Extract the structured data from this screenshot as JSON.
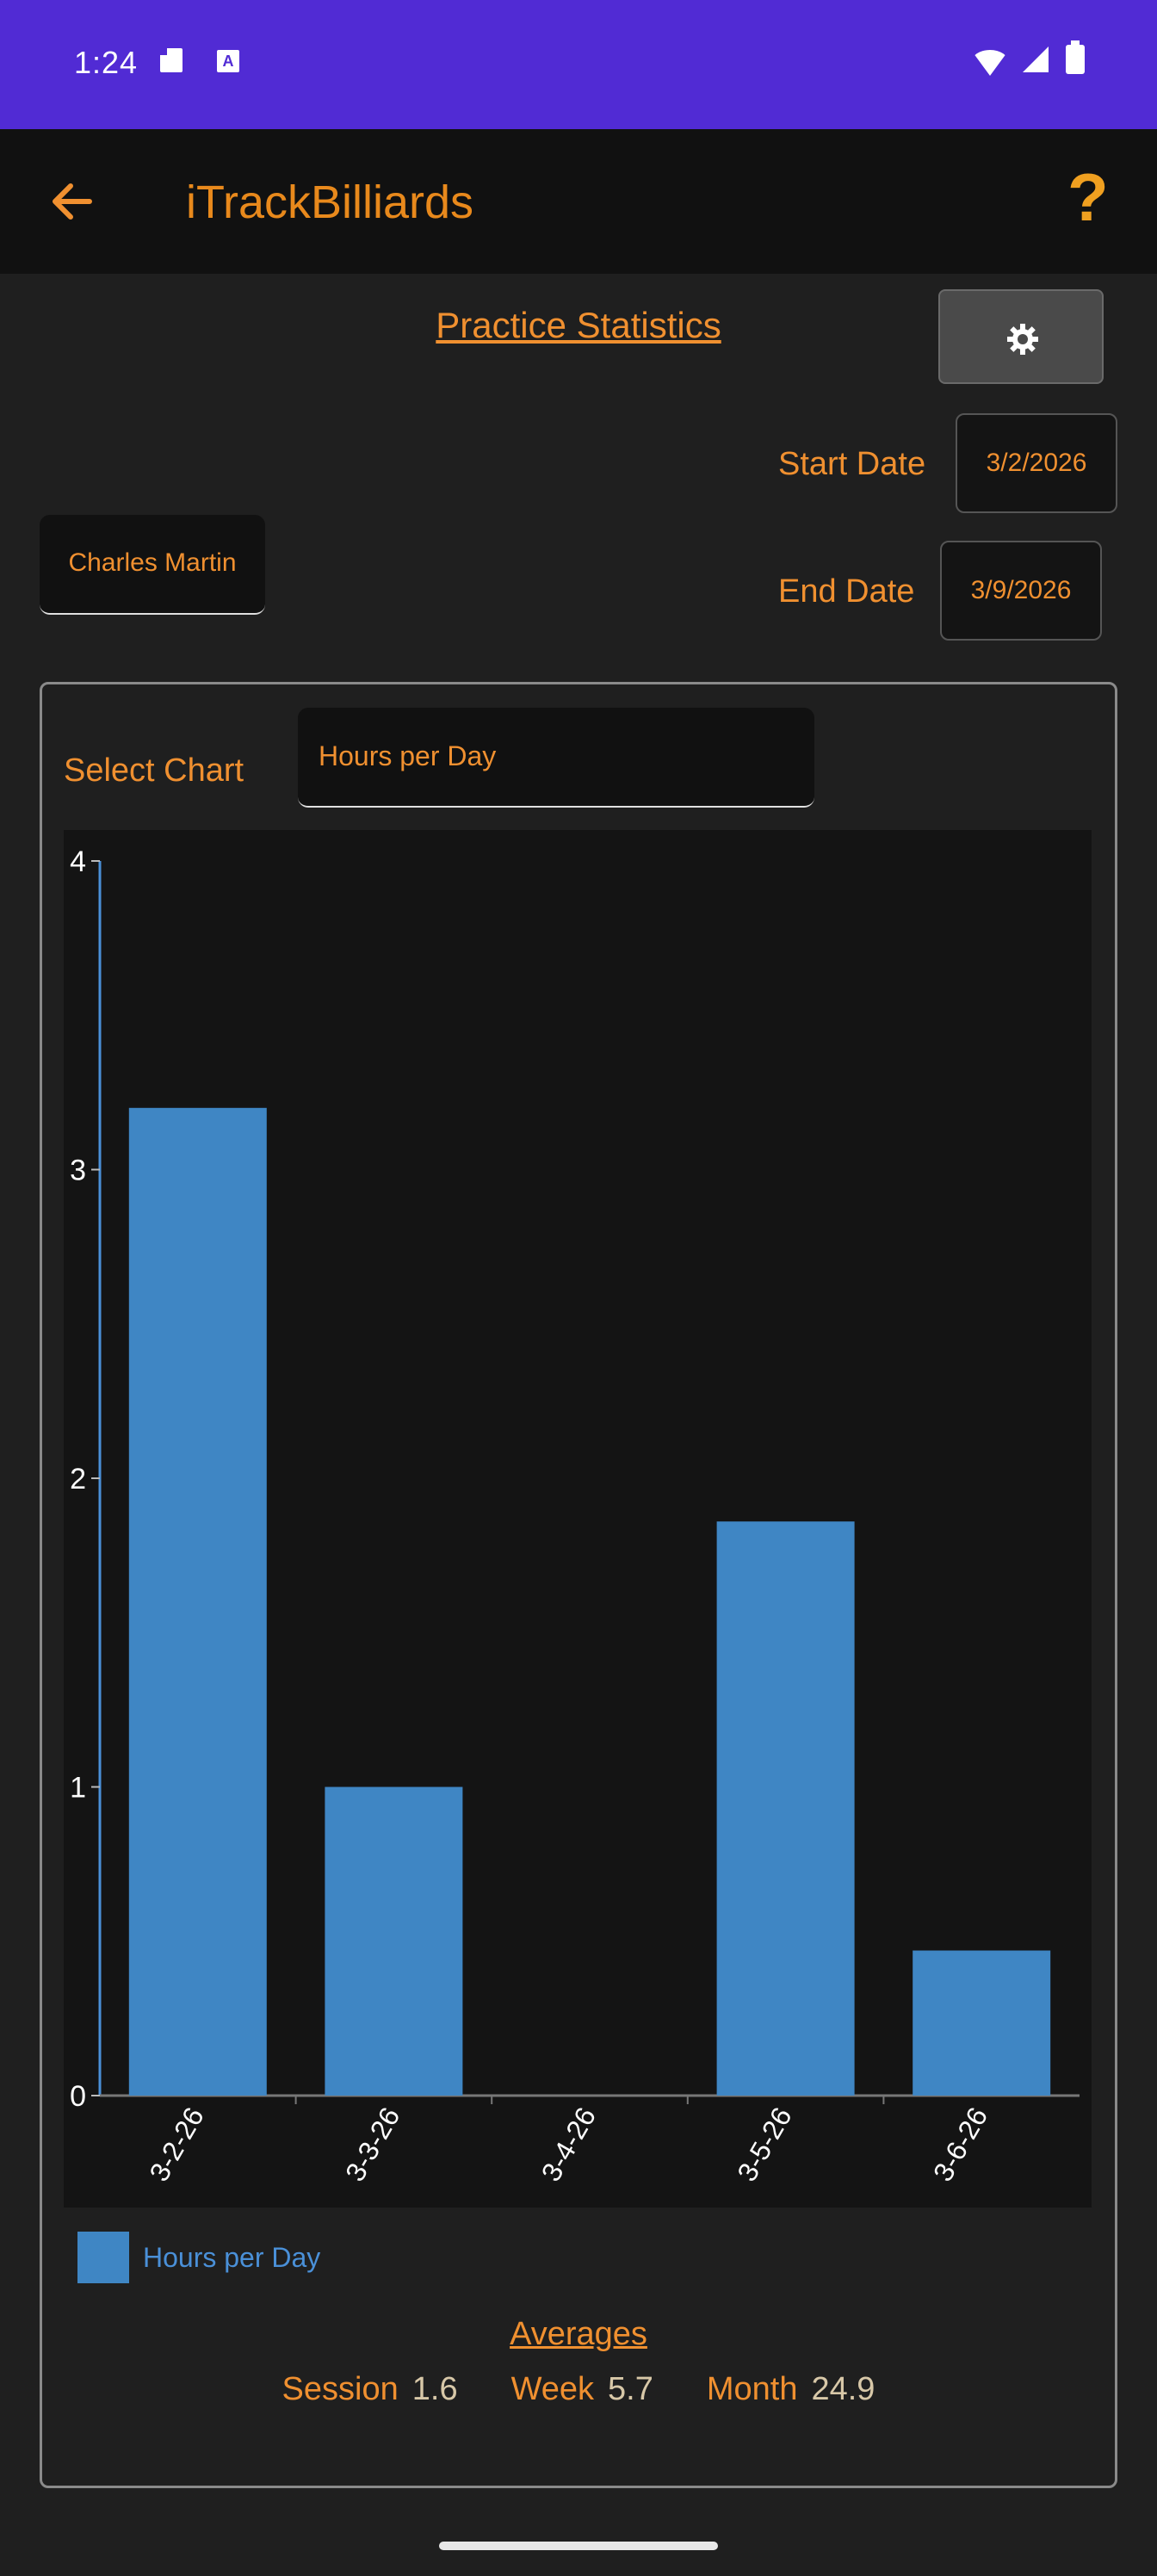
{
  "status_bar": {
    "time": "1:24",
    "icons": [
      "sd-card-icon",
      "a-badge-icon",
      "wifi-icon",
      "signal-icon",
      "battery-icon"
    ]
  },
  "app_bar": {
    "title": "iTrackBilliards",
    "back_icon": "arrow-back-icon",
    "help_label": "?"
  },
  "page": {
    "heading": "Practice Statistics",
    "settings_icon": "gear-icon",
    "start_date_label": "Start Date",
    "start_date_value": "3/2/2026",
    "end_date_label": "End Date",
    "end_date_value": "3/9/2026",
    "player_name": "Charles Martin"
  },
  "chart_panel": {
    "select_label": "Select Chart",
    "selected_chart": "Hours per Day",
    "legend_label": "Hours per Day"
  },
  "colors": {
    "accent": "#f09030",
    "bar": "#3f86c4",
    "status_bar": "#512bd4"
  },
  "chart_data": {
    "type": "bar",
    "categories": [
      "3-2-26",
      "3-3-26",
      "3-4-26",
      "3-5-26",
      "3-6-26"
    ],
    "series": [
      {
        "name": "Hours per Day",
        "values": [
          3.2,
          1.0,
          0,
          1.86,
          0.47
        ]
      }
    ],
    "ylim": [
      0,
      4
    ],
    "yticks": [
      "0",
      "1",
      "2",
      "3",
      "4"
    ],
    "legend": "bottom-left",
    "grid": false
  },
  "averages": {
    "heading": "Averages",
    "session_label": "Session",
    "session_value": "1.6",
    "week_label": "Week",
    "week_value": "5.7",
    "month_label": "Month",
    "month_value": "24.9"
  }
}
